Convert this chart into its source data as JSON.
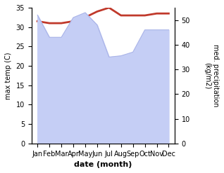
{
  "months": [
    "Jan",
    "Feb",
    "Mar",
    "Apr",
    "May",
    "Jun",
    "Jul",
    "Aug",
    "Sep",
    "Oct",
    "Nov",
    "Dec"
  ],
  "max_temp": [
    31.5,
    31.0,
    31.0,
    31.5,
    32.5,
    34.0,
    35.0,
    33.0,
    33.0,
    33.0,
    33.5,
    33.5
  ],
  "precipitation": [
    52.0,
    43.0,
    43.0,
    51.0,
    53.0,
    48.0,
    35.0,
    35.5,
    37.0,
    46.0,
    46.0,
    46.0
  ],
  "temp_color": "#c0392b",
  "precip_fill_color": "#c5cef5",
  "precip_line_color": "#aab4e8",
  "ylabel_left": "max temp (C)",
  "ylabel_right": "med. precipitation\n(kg/m2)",
  "xlabel": "date (month)",
  "ylim_left": [
    0,
    35
  ],
  "ylim_right": [
    0,
    55
  ],
  "yticks_left": [
    0,
    5,
    10,
    15,
    20,
    25,
    30,
    35
  ],
  "yticks_right": [
    0,
    10,
    20,
    30,
    40,
    50
  ],
  "temp_linewidth": 2.0,
  "precip_linewidth": 0.8,
  "background_color": "#ffffff"
}
